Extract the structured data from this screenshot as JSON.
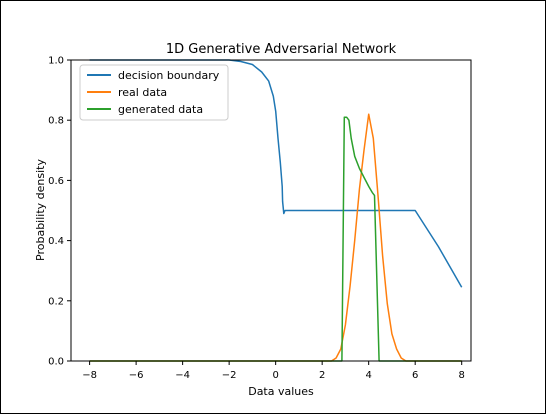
{
  "chart_data": {
    "type": "line",
    "title": "1D Generative Adversarial Network",
    "xlabel": "Data values",
    "ylabel": "Probability density",
    "xlim": [
      -8.8,
      8.4
    ],
    "ylim": [
      0,
      1.0
    ],
    "xticks": [
      -8,
      -6,
      -4,
      -2,
      0,
      2,
      4,
      6,
      8
    ],
    "xtick_labels": [
      "−8",
      "−6",
      "−4",
      "−2",
      "0",
      "2",
      "4",
      "6",
      "8"
    ],
    "yticks": [
      0.0,
      0.2,
      0.4,
      0.6,
      0.8,
      1.0
    ],
    "ytick_labels": [
      "0.0",
      "0.2",
      "0.4",
      "0.6",
      "0.8",
      "1.0"
    ],
    "grid": false,
    "legend_position": "top-left",
    "series": [
      {
        "name": "decision boundary",
        "color": "#1f77b4",
        "x": [
          -8,
          -2.5,
          -2.0,
          -1.5,
          -1.0,
          -0.6,
          -0.3,
          -0.1,
          0.0,
          0.1,
          0.2,
          0.28,
          0.3,
          0.35,
          0.4,
          6.0,
          7.0,
          8.0
        ],
        "y": [
          1.0,
          1.0,
          1.0,
          0.995,
          0.985,
          0.96,
          0.93,
          0.88,
          0.83,
          0.74,
          0.66,
          0.58,
          0.53,
          0.49,
          0.5,
          0.5,
          0.38,
          0.245
        ]
      },
      {
        "name": "real data",
        "color": "#ff7f0e",
        "x": [
          -8,
          2.4,
          2.6,
          2.8,
          3.0,
          3.2,
          3.4,
          3.6,
          3.8,
          4.0,
          4.2,
          4.4,
          4.6,
          4.8,
          5.0,
          5.2,
          5.4,
          5.6,
          8.0
        ],
        "y": [
          0.0,
          0.0,
          0.01,
          0.04,
          0.12,
          0.25,
          0.4,
          0.57,
          0.7,
          0.82,
          0.74,
          0.55,
          0.35,
          0.19,
          0.09,
          0.04,
          0.01,
          0.0,
          0.0
        ]
      },
      {
        "name": "generated data",
        "color": "#2ca02c",
        "x": [
          -8,
          2.85,
          2.95,
          3.05,
          3.15,
          3.25,
          3.4,
          3.6,
          3.8,
          4.0,
          4.15,
          4.25,
          4.45,
          8.0
        ],
        "y": [
          0.0,
          0.0,
          0.81,
          0.81,
          0.8,
          0.74,
          0.68,
          0.64,
          0.61,
          0.58,
          0.56,
          0.55,
          0.0,
          0.0
        ]
      }
    ]
  }
}
